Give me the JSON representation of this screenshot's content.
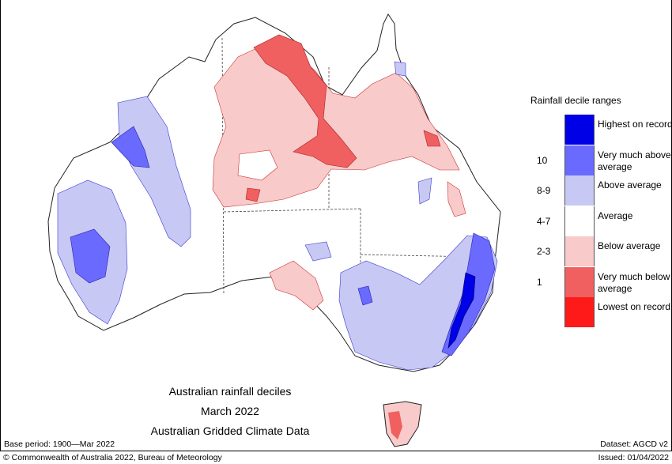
{
  "legend": {
    "title": "Rainfall decile ranges",
    "items": [
      {
        "code": "",
        "label": "Highest on record",
        "color": "#0000e6"
      },
      {
        "code": "10",
        "label": "Very much above average",
        "color": "#6a6aff"
      },
      {
        "code": "8-9",
        "label": "Above average",
        "color": "#c8c8f5"
      },
      {
        "code": "4-7",
        "label": "Average",
        "color": "#ffffff"
      },
      {
        "code": "2-3",
        "label": "Below average",
        "color": "#f8caca"
      },
      {
        "code": "1",
        "label": "Very much below average",
        "color": "#f06060"
      },
      {
        "code": "",
        "label": "Lowest on record",
        "color": "#ff1a1a"
      }
    ]
  },
  "caption": {
    "line1": "Australian rainfall deciles",
    "line2": "March 2022",
    "line3": "Australian Gridded Climate Data"
  },
  "footer": {
    "base_period": "Base period: 1900—Mar 2022",
    "dataset": "Dataset: AGCD v2",
    "copyright": "© Commonwealth of Australia 2022, Bureau of Meteorology",
    "issued": "Issued: 01/04/2022"
  }
}
